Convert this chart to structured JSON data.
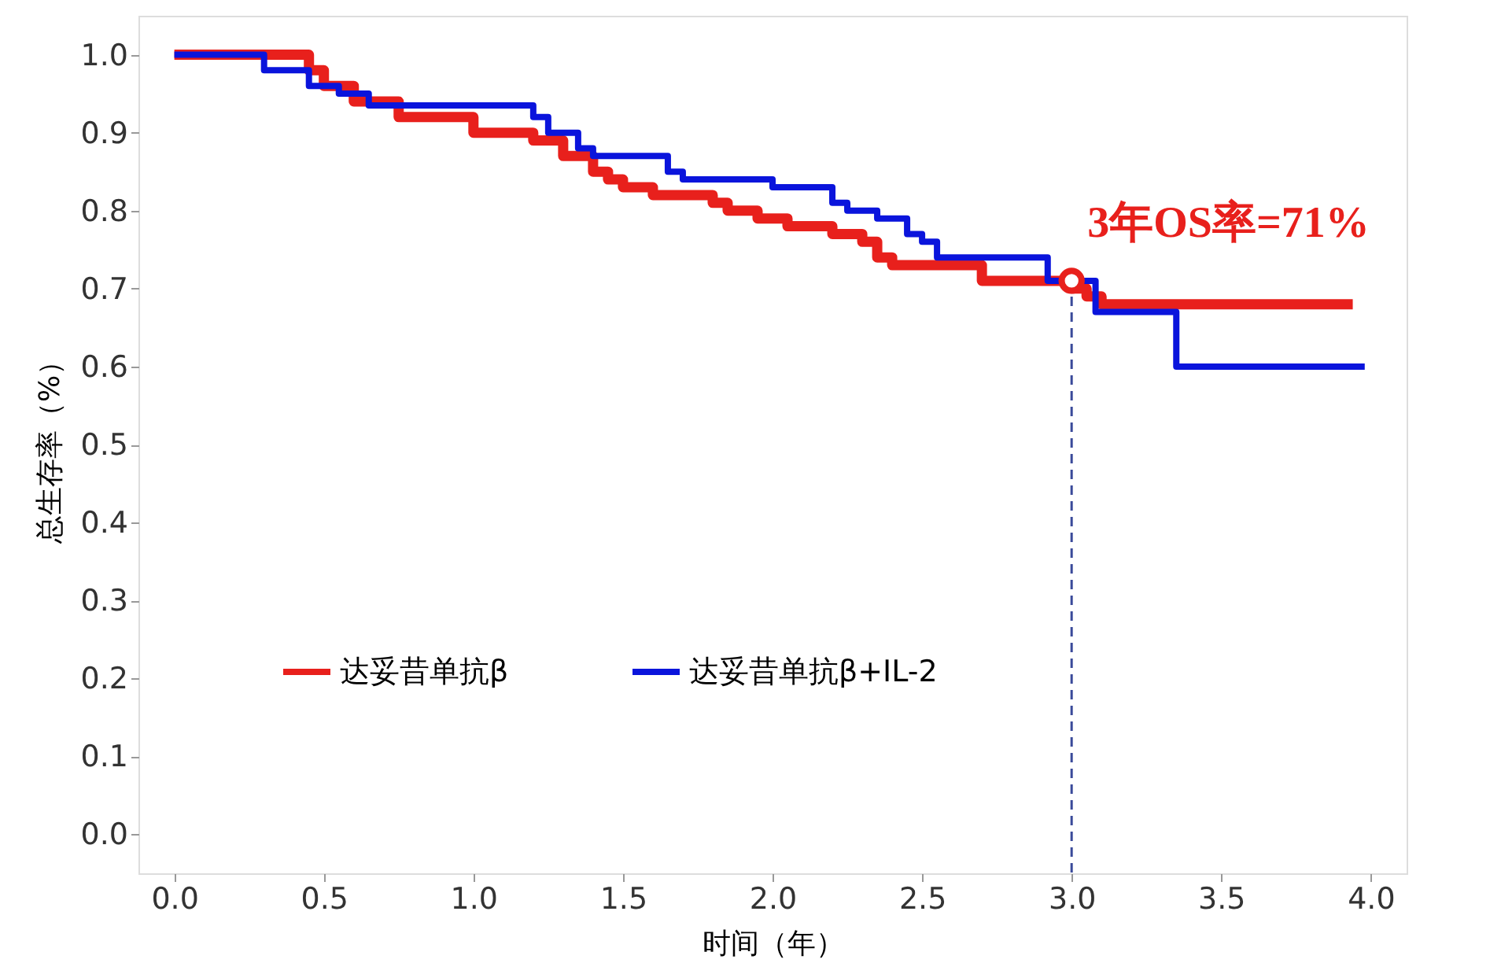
{
  "chart_data": {
    "type": "step",
    "xlabel": "时间（年）",
    "ylabel": "总生存率（%）",
    "xlim": [
      -0.12,
      4.12
    ],
    "xticks": [
      {
        "value": 0,
        "label": "0.0"
      },
      0.5,
      {
        "value": 1,
        "label": "1.0"
      },
      1.5,
      {
        "value": 2,
        "label": "2.0"
      },
      2.5,
      {
        "value": 3,
        "label": "3.0"
      },
      3.5,
      {
        "value": 4,
        "label": "4.0"
      }
    ],
    "ylim": [
      -0.05,
      1.05
    ],
    "yticks": [
      {
        "value": 0,
        "label": "0.0"
      },
      0.1,
      0.2,
      0.3,
      0.4,
      0.5,
      0.6,
      0.7,
      0.8,
      0.9,
      {
        "value": 1,
        "label": "1.0"
      }
    ],
    "series": [
      {
        "name": "达妥昔单抗β",
        "color": "#e8201c",
        "x": [
          0,
          0.45,
          0.5,
          0.6,
          0.75,
          1.0,
          1.2,
          1.3,
          1.4,
          1.45,
          1.5,
          1.6,
          1.8,
          1.85,
          1.95,
          2.05,
          2.2,
          2.3,
          2.35,
          2.4,
          2.7,
          3.0,
          3.05,
          3.1,
          3.94
        ],
        "values": [
          1.0,
          0.98,
          0.96,
          0.94,
          0.92,
          0.9,
          0.89,
          0.87,
          0.85,
          0.84,
          0.83,
          0.82,
          0.81,
          0.8,
          0.79,
          0.78,
          0.77,
          0.76,
          0.74,
          0.73,
          0.71,
          0.7,
          0.69,
          0.68,
          0.68
        ]
      },
      {
        "name": "达妥昔单抗β+IL-2",
        "color": "#0a14dc",
        "x": [
          0,
          0.3,
          0.45,
          0.55,
          0.65,
          1.2,
          1.25,
          1.35,
          1.4,
          1.65,
          1.7,
          2.0,
          2.2,
          2.25,
          2.35,
          2.45,
          2.5,
          2.55,
          2.92,
          3.08,
          3.35,
          3.98
        ],
        "values": [
          1.0,
          0.98,
          0.96,
          0.95,
          0.935,
          0.92,
          0.9,
          0.88,
          0.87,
          0.85,
          0.84,
          0.83,
          0.81,
          0.8,
          0.79,
          0.77,
          0.76,
          0.74,
          0.71,
          0.67,
          0.6,
          0.6
        ]
      }
    ],
    "annotations": [
      {
        "text": "3年OS率=71%",
        "x": 3.0,
        "y": 0.71
      }
    ],
    "ref_lines": [
      {
        "axis": "x",
        "value": 3.0,
        "label": null,
        "color": "#3a4a9a",
        "line_style": "dashed"
      }
    ],
    "legend": "bottom",
    "grid": false,
    "line_style": "solid"
  }
}
